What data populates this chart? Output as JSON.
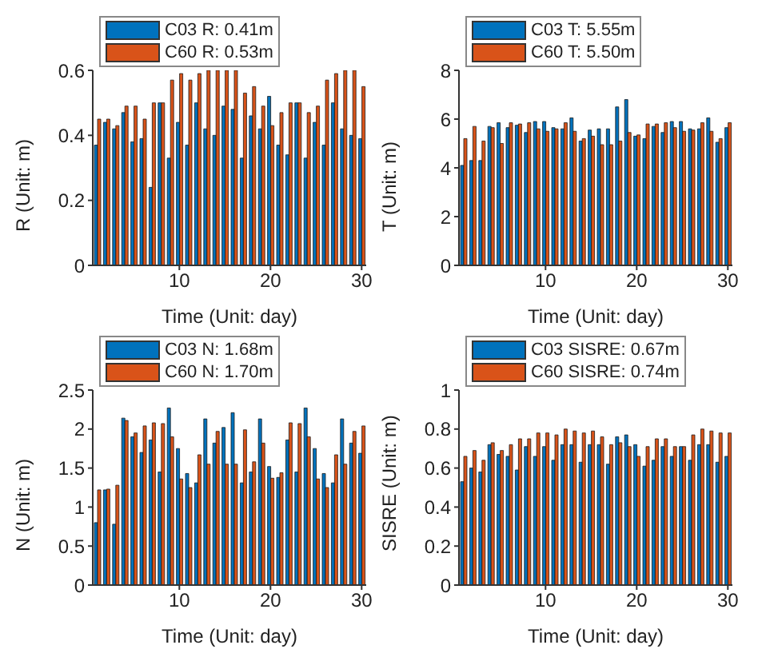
{
  "chart_data": [
    {
      "type": "bar",
      "xlabel": "Time (Unit: day)",
      "ylabel": "R (Unit: m)",
      "x": [
        1,
        2,
        3,
        4,
        5,
        6,
        7,
        8,
        9,
        10,
        11,
        12,
        13,
        14,
        15,
        16,
        17,
        18,
        19,
        20,
        21,
        22,
        23,
        24,
        25,
        26,
        27,
        28,
        29,
        30
      ],
      "xlim": [
        0.5,
        30.5
      ],
      "xticks": [
        10,
        20,
        30
      ],
      "ylim": [
        0,
        0.6
      ],
      "yticks": [
        0,
        0.2,
        0.4,
        0.6
      ],
      "legend": "top left",
      "series": [
        {
          "name": "C03 R: 0.41m",
          "color": "#0072bd",
          "values": [
            0.37,
            0.44,
            0.42,
            0.47,
            0.38,
            0.39,
            0.24,
            0.5,
            0.33,
            0.44,
            0.37,
            0.5,
            0.42,
            0.4,
            0.49,
            0.48,
            0.33,
            0.46,
            0.42,
            0.52,
            0.37,
            0.34,
            0.5,
            0.33,
            0.44,
            0.37,
            0.5,
            0.42,
            0.4,
            0.39
          ]
        },
        {
          "name": "C60 R: 0.53m",
          "color": "#d95319",
          "values": [
            0.45,
            0.45,
            0.43,
            0.49,
            0.49,
            0.45,
            0.5,
            0.5,
            0.57,
            0.59,
            0.57,
            0.59,
            0.6,
            0.6,
            0.6,
            0.6,
            0.53,
            0.55,
            0.49,
            0.43,
            0.47,
            0.5,
            0.5,
            0.47,
            0.49,
            0.57,
            0.59,
            0.6,
            0.6,
            0.55
          ]
        }
      ]
    },
    {
      "type": "bar",
      "xlabel": "Time (Unit: day)",
      "ylabel": "T (Unit: m)",
      "x": [
        1,
        2,
        3,
        4,
        5,
        6,
        7,
        8,
        9,
        10,
        11,
        12,
        13,
        14,
        15,
        16,
        17,
        18,
        19,
        20,
        21,
        22,
        23,
        24,
        25,
        26,
        27,
        28,
        29,
        30
      ],
      "xlim": [
        0.5,
        30.5
      ],
      "xticks": [
        10,
        20,
        30
      ],
      "ylim": [
        0,
        8
      ],
      "yticks": [
        0,
        2,
        4,
        6,
        8
      ],
      "legend": "top left",
      "series": [
        {
          "name": "C03 T: 5.55m",
          "color": "#0072bd",
          "values": [
            4.1,
            4.3,
            4.3,
            5.7,
            5.85,
            5.65,
            5.75,
            5.45,
            5.9,
            5.9,
            5.65,
            5.6,
            6.05,
            5.1,
            5.55,
            5.6,
            5.6,
            6.5,
            6.8,
            5.3,
            5.2,
            5.7,
            5.45,
            5.9,
            5.9,
            5.6,
            5.6,
            6.05,
            5.05,
            5.65
          ]
        },
        {
          "name": "C60 T: 5.50m",
          "color": "#d95319",
          "values": [
            5.2,
            5.7,
            5.1,
            5.65,
            5.0,
            5.85,
            5.8,
            5.85,
            5.6,
            5.5,
            5.6,
            5.85,
            5.5,
            5.2,
            5.3,
            4.95,
            4.95,
            5.1,
            5.45,
            5.35,
            5.8,
            5.8,
            5.85,
            5.65,
            5.5,
            5.55,
            5.85,
            5.5,
            5.2,
            5.85
          ]
        }
      ]
    },
    {
      "type": "bar",
      "xlabel": "Time (Unit: day)",
      "ylabel": "N (Unit: m)",
      "x": [
        1,
        2,
        3,
        4,
        5,
        6,
        7,
        8,
        9,
        10,
        11,
        12,
        13,
        14,
        15,
        16,
        17,
        18,
        19,
        20,
        21,
        22,
        23,
        24,
        25,
        26,
        27,
        28,
        29,
        30
      ],
      "xlim": [
        0.5,
        30.5
      ],
      "xticks": [
        10,
        20,
        30
      ],
      "ylim": [
        0,
        2.5
      ],
      "yticks": [
        0,
        0.5,
        1,
        1.5,
        2,
        2.5
      ],
      "legend": "top left",
      "series": [
        {
          "name": "C03 N: 1.68m",
          "color": "#0072bd",
          "values": [
            0.8,
            1.22,
            0.78,
            2.14,
            1.9,
            1.7,
            1.86,
            1.45,
            2.27,
            1.75,
            1.43,
            1.31,
            2.13,
            1.82,
            2.02,
            2.21,
            1.31,
            1.45,
            2.13,
            1.52,
            1.38,
            1.86,
            1.45,
            2.27,
            1.75,
            1.43,
            1.31,
            2.13,
            1.82,
            1.69
          ]
        },
        {
          "name": "C60 N: 1.70m",
          "color": "#d95319",
          "values": [
            1.22,
            1.23,
            1.28,
            2.11,
            1.95,
            2.04,
            2.08,
            2.07,
            1.9,
            1.36,
            1.25,
            1.67,
            1.55,
            1.97,
            1.55,
            1.55,
            1.99,
            1.58,
            1.82,
            1.37,
            1.44,
            2.08,
            2.07,
            1.9,
            1.36,
            1.25,
            1.67,
            1.55,
            1.97,
            2.04
          ]
        }
      ]
    },
    {
      "type": "bar",
      "xlabel": "Time (Unit: day)",
      "ylabel": "SISRE (Unit: m)",
      "x": [
        1,
        2,
        3,
        4,
        5,
        6,
        7,
        8,
        9,
        10,
        11,
        12,
        13,
        14,
        15,
        16,
        17,
        18,
        19,
        20,
        21,
        22,
        23,
        24,
        25,
        26,
        27,
        28,
        29,
        30
      ],
      "xlim": [
        0.5,
        30.5
      ],
      "xticks": [
        10,
        20,
        30
      ],
      "ylim": [
        0,
        1
      ],
      "yticks": [
        0,
        0.2,
        0.4,
        0.6,
        0.8,
        1
      ],
      "legend": "top left",
      "series": [
        {
          "name": "C03 SISRE: 0.67m",
          "color": "#0072bd",
          "values": [
            0.53,
            0.6,
            0.58,
            0.72,
            0.67,
            0.66,
            0.59,
            0.71,
            0.66,
            0.71,
            0.64,
            0.72,
            0.72,
            0.63,
            0.72,
            0.72,
            0.62,
            0.76,
            0.77,
            0.72,
            0.61,
            0.64,
            0.71,
            0.66,
            0.71,
            0.64,
            0.72,
            0.72,
            0.63,
            0.66
          ]
        },
        {
          "name": "C60 SISRE: 0.74m",
          "color": "#d95319",
          "values": [
            0.66,
            0.69,
            0.64,
            0.73,
            0.69,
            0.72,
            0.75,
            0.75,
            0.78,
            0.78,
            0.77,
            0.8,
            0.79,
            0.78,
            0.79,
            0.76,
            0.72,
            0.73,
            0.71,
            0.66,
            0.71,
            0.75,
            0.75,
            0.71,
            0.71,
            0.77,
            0.8,
            0.79,
            0.78,
            0.78
          ]
        }
      ]
    }
  ]
}
